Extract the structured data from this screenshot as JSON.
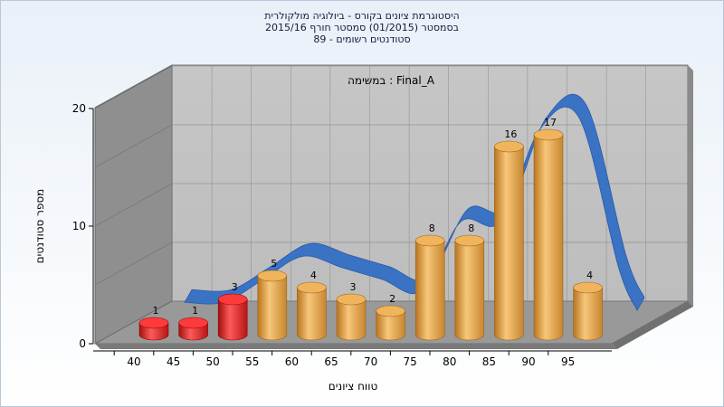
{
  "chart_data": {
    "type": "bar",
    "title_lines": [
      "היסטוגרמת ציונים בקורס - ביולוגיה מולקולרית",
      "בסמסטר  (01/2015)  סמסטר חורף 2015/16",
      "סטודנטים רשומים - 89"
    ],
    "annotation": "במשימה : Final_A",
    "xlabel": "טווח ציונים",
    "ylabel": "מספר סטודנטים",
    "x_ticks": [
      "40",
      "45",
      "50",
      "55",
      "60",
      "65",
      "70",
      "75",
      "80",
      "85",
      "90",
      "95"
    ],
    "y_ticks": [
      "0",
      "10",
      "20"
    ],
    "ylim": [
      0,
      20
    ],
    "categories": [
      "40",
      "45",
      "50",
      "55",
      "60",
      "65",
      "70",
      "75",
      "80",
      "85",
      "90",
      "95"
    ],
    "values": [
      1,
      1,
      3,
      5,
      4,
      3,
      2,
      8,
      8,
      16,
      17,
      4
    ],
    "value_labels": [
      "1",
      "1",
      "3",
      "5",
      "4",
      "3",
      "2",
      "8",
      "8",
      "16",
      "17",
      "4"
    ],
    "bar_colors": [
      "#e32020",
      "#e32020",
      "#e32020",
      "#e8a040",
      "#e8a040",
      "#e8a040",
      "#e8a040",
      "#e8a040",
      "#e8a040",
      "#e8a040",
      "#e8a040",
      "#e8a040"
    ],
    "ribbon_color": "#3a72c4",
    "grid": true,
    "style": "3d"
  }
}
